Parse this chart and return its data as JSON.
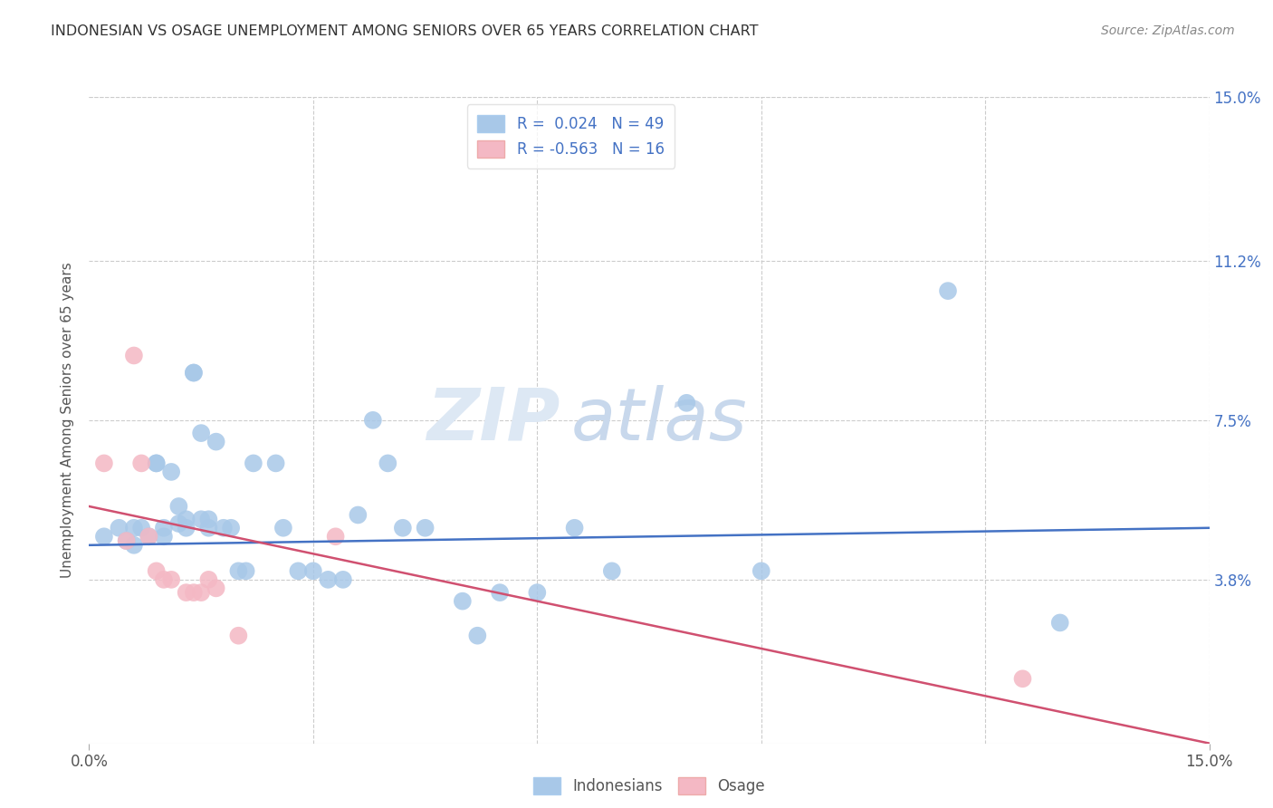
{
  "title": "INDONESIAN VS OSAGE UNEMPLOYMENT AMONG SENIORS OVER 65 YEARS CORRELATION CHART",
  "source": "Source: ZipAtlas.com",
  "ylabel": "Unemployment Among Seniors over 65 years",
  "xlim": [
    0,
    0.15
  ],
  "ylim": [
    0,
    0.15
  ],
  "ytick_labels_right": [
    "15.0%",
    "11.2%",
    "7.5%",
    "3.8%"
  ],
  "ytick_values_right": [
    0.15,
    0.112,
    0.075,
    0.038
  ],
  "blue_R": "0.024",
  "blue_N": "49",
  "pink_R": "-0.563",
  "pink_N": "16",
  "blue_color": "#a8c8e8",
  "pink_color": "#f4b8c4",
  "trendline_blue_color": "#4472c4",
  "trendline_pink_color": "#d05070",
  "legend_label_blue": "Indonesians",
  "legend_label_pink": "Osage",
  "watermark_zip": "ZIP",
  "watermark_atlas": "atlas",
  "blue_x": [
    0.002,
    0.004,
    0.005,
    0.006,
    0.006,
    0.007,
    0.008,
    0.009,
    0.009,
    0.01,
    0.01,
    0.011,
    0.012,
    0.012,
    0.013,
    0.013,
    0.014,
    0.014,
    0.015,
    0.015,
    0.016,
    0.016,
    0.017,
    0.018,
    0.019,
    0.02,
    0.021,
    0.022,
    0.025,
    0.026,
    0.028,
    0.03,
    0.032,
    0.034,
    0.036,
    0.038,
    0.04,
    0.042,
    0.045,
    0.05,
    0.052,
    0.055,
    0.06,
    0.065,
    0.07,
    0.08,
    0.09,
    0.115,
    0.13
  ],
  "blue_y": [
    0.048,
    0.05,
    0.047,
    0.05,
    0.046,
    0.05,
    0.048,
    0.065,
    0.065,
    0.05,
    0.048,
    0.063,
    0.051,
    0.055,
    0.05,
    0.052,
    0.086,
    0.086,
    0.072,
    0.052,
    0.05,
    0.052,
    0.07,
    0.05,
    0.05,
    0.04,
    0.04,
    0.065,
    0.065,
    0.05,
    0.04,
    0.04,
    0.038,
    0.038,
    0.053,
    0.075,
    0.065,
    0.05,
    0.05,
    0.033,
    0.025,
    0.035,
    0.035,
    0.05,
    0.04,
    0.079,
    0.04,
    0.105,
    0.028
  ],
  "pink_x": [
    0.002,
    0.005,
    0.006,
    0.007,
    0.008,
    0.009,
    0.01,
    0.011,
    0.013,
    0.014,
    0.015,
    0.016,
    0.017,
    0.02,
    0.033,
    0.125
  ],
  "pink_y": [
    0.065,
    0.047,
    0.09,
    0.065,
    0.048,
    0.04,
    0.038,
    0.038,
    0.035,
    0.035,
    0.035,
    0.038,
    0.036,
    0.025,
    0.048,
    0.015
  ],
  "blue_trend_x0": 0.0,
  "blue_trend_y0": 0.046,
  "blue_trend_x1": 0.15,
  "blue_trend_y1": 0.05,
  "pink_trend_x0": 0.0,
  "pink_trend_y0": 0.055,
  "pink_trend_x1": 0.15,
  "pink_trend_y1": 0.0
}
